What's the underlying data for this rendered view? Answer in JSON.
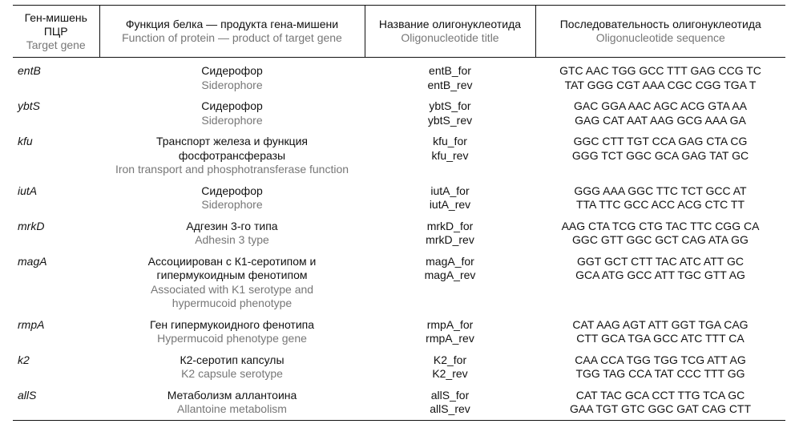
{
  "headers": {
    "gene": {
      "ru": "Ген-мишень ПЦР",
      "en": "Target gene"
    },
    "function": {
      "ru": "Функция белка — продукта гена-мишени",
      "en": "Function of protein — product of target gene"
    },
    "title": {
      "ru": "Название олигонуклеотида",
      "en": "Oligonucleotide title"
    },
    "sequence": {
      "ru": "Последовательность олигонуклеотида",
      "en": "Oligonucleotide sequence"
    }
  },
  "rows": [
    {
      "gene": "entB",
      "function_ru": "Сидерофор",
      "function_en": "Siderophore",
      "for": "entB_for",
      "rev": "entB_rev",
      "seq_for": "GTC AAC TGG GCC TTT GAG CCG TC",
      "seq_rev": "TAT GGG CGT AAA CGC CGG TGA T"
    },
    {
      "gene": "ybtS",
      "function_ru": "Сидерофор",
      "function_en": "Siderophore",
      "for": "ybtS_for",
      "rev": "ybtS_rev",
      "seq_for": "GAC GGA AAC AGC ACG GTA AA",
      "seq_rev": "GAG CAT AAT AAG GCG AAA GA"
    },
    {
      "gene": "kfu",
      "function_ru": "Транспорт железа и функция фосфотрансферазы",
      "function_en": "Iron transport and phosphotransferase function",
      "for": "kfu_for",
      "rev": "kfu_rev",
      "seq_for": "GGC CTT TGT CCA GAG CTA CG",
      "seq_rev": "GGG TCT GGC GCA GAG TAT GC"
    },
    {
      "gene": "iutA",
      "function_ru": "Сидерофор",
      "function_en": "Siderophore",
      "for": "iutA_for",
      "rev": "iutA_rev",
      "seq_for": "GGG AAA GGC TTC TCT GCC AT",
      "seq_rev": "TTA TTC GCC ACC ACG CTC TT"
    },
    {
      "gene": "mrkD",
      "function_ru": "Адгезин 3-го типа",
      "function_en": "Adhesin 3 type",
      "for": "mrkD_for",
      "rev": "mrkD_rev",
      "seq_for": "AAG CTA TCG CTG TAC TTC CGG CA",
      "seq_rev": "GGC GTT GGC GCT CAG ATA GG"
    },
    {
      "gene": "magA",
      "function_ru": "Ассоциирован с К1-серотипом и гипермукоидным фенотипом",
      "function_en": "Associated with K1 serotype and hypermucoid phenotype",
      "for": "magA_for",
      "rev": "magA_rev",
      "seq_for": "GGT GCT CTT TAC ATC ATT GC",
      "seq_rev": "GCA ATG GCC ATT TGC GTT AG"
    },
    {
      "gene": "rmpA",
      "function_ru": "Ген гипермукоидного фенотипа",
      "function_en": "Hypermucoid phenotype gene",
      "for": "rmpA_for",
      "rev": "rmpA_rev",
      "seq_for": "CAT AAG AGT ATT GGT TGA CAG",
      "seq_rev": "CTT GCA TGA GCC ATC TTT CA"
    },
    {
      "gene": "k2",
      "function_ru": "К2-серотип капсулы",
      "function_en": "K2 capsule serotype",
      "for": "K2_for",
      "rev": "K2_rev",
      "seq_for": "CAA CCA TGG TGG TCG ATT AG",
      "seq_rev": "TGG TAG CCA TAT CCC TTT GG"
    },
    {
      "gene": "allS",
      "function_ru": "Метаболизм аллантоина",
      "function_en": "Allantoine metabolism",
      "for": "allS_for",
      "rev": "allS_rev",
      "seq_for": "CAT TAC GCA CCT TTG TCA GC",
      "seq_rev": "GAA TGT GTC GGC GAT CAG CTT"
    }
  ]
}
